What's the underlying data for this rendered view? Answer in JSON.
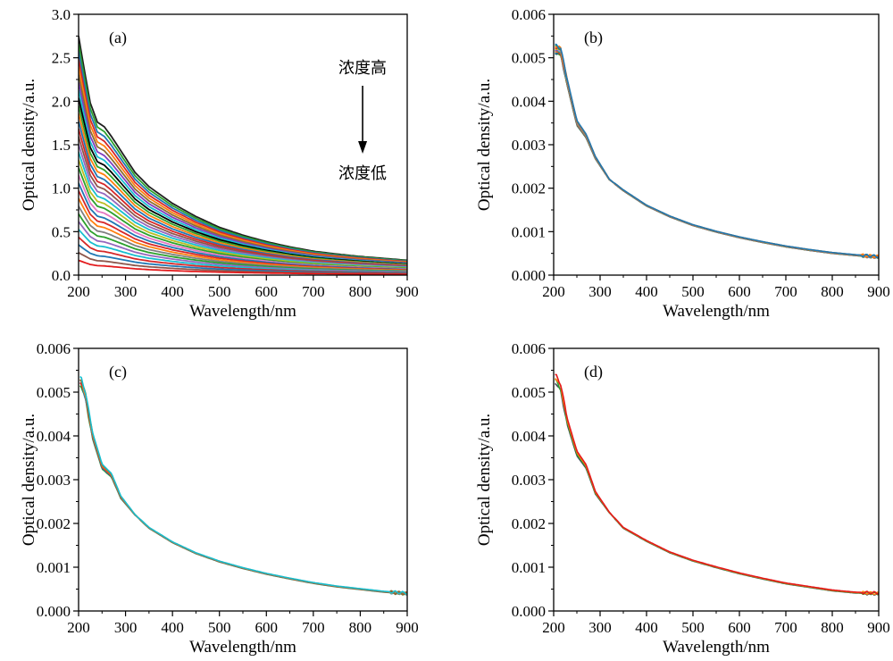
{
  "chart_data": [
    {
      "panel": "(a)",
      "type": "line",
      "xlabel": "Wavelength/nm",
      "ylabel": "Optical density/a.u.",
      "xlim": [
        200,
        900
      ],
      "ylim": [
        0,
        3.0
      ],
      "xticks": [
        "200",
        "300",
        "400",
        "500",
        "600",
        "700",
        "800",
        "900"
      ],
      "yticks": [
        "0.0",
        "0.5",
        "1.0",
        "1.5",
        "2.0",
        "2.5",
        "3.0"
      ],
      "annotations": {
        "top": "浓度高",
        "bottom": "浓度低",
        "arrow": "down"
      },
      "series_count": 30,
      "peak_at_200nm_range": [
        0.17,
        2.75
      ],
      "value_at_900nm_range": [
        0.03,
        0.22
      ],
      "colors": [
        "#1f1f1f",
        "#2ca02c",
        "#1f77b4",
        "#d62728",
        "#ff7f0e",
        "#8c6d31",
        "#7f3fbf",
        "#17becf",
        "#000000",
        "#2ca02c",
        "#ff7f0e",
        "#1f77b4",
        "#d62728",
        "#8c564b",
        "#9467bd",
        "#17becf",
        "#bcbd22",
        "#2ca02c",
        "#e377c2",
        "#1f77b4",
        "#d62728",
        "#ff7f0e",
        "#7f7f7f",
        "#2ca02c",
        "#9467bd",
        "#17becf",
        "#d62728",
        "#1f77b4",
        "#8c564b",
        "#e31a1c"
      ]
    },
    {
      "panel": "(b)",
      "type": "line",
      "xlabel": "Wavelength/nm",
      "ylabel": "Optical density/a.u.",
      "xlim": [
        200,
        900
      ],
      "ylim": [
        0,
        0.006
      ],
      "xticks": [
        "200",
        "300",
        "400",
        "500",
        "600",
        "700",
        "800",
        "900"
      ],
      "yticks": [
        "0.000",
        "0.001",
        "0.002",
        "0.003",
        "0.004",
        "0.005",
        "0.006"
      ],
      "profile": [
        [
          205,
          0.0052
        ],
        [
          215,
          0.00515
        ],
        [
          230,
          0.0044
        ],
        [
          250,
          0.0035
        ],
        [
          270,
          0.0032
        ],
        [
          290,
          0.0027
        ],
        [
          320,
          0.0022
        ],
        [
          350,
          0.00195
        ],
        [
          400,
          0.0016
        ],
        [
          450,
          0.00135
        ],
        [
          500,
          0.00115
        ],
        [
          550,
          0.001
        ],
        [
          600,
          0.00087
        ],
        [
          650,
          0.00076
        ],
        [
          700,
          0.00066
        ],
        [
          750,
          0.00058
        ],
        [
          800,
          0.00051
        ],
        [
          850,
          0.00046
        ],
        [
          900,
          0.00042
        ]
      ],
      "series_count": 14,
      "colors": [
        "#1f5e5e",
        "#2ca02c",
        "#1f77b4",
        "#d62728",
        "#ff7f0e",
        "#8c6d31",
        "#7f3fbf",
        "#17becf",
        "#bcbd22",
        "#e377c2",
        "#d62728",
        "#2ca02c",
        "#ff7f0e",
        "#1f77b4"
      ]
    },
    {
      "panel": "(c)",
      "type": "line",
      "xlabel": "Wavelength/nm",
      "ylabel": "Optical density/a.u.",
      "xlim": [
        200,
        900
      ],
      "ylim": [
        0,
        0.006
      ],
      "xticks": [
        "200",
        "300",
        "400",
        "500",
        "600",
        "700",
        "800",
        "900"
      ],
      "yticks": [
        "0.000",
        "0.001",
        "0.002",
        "0.003",
        "0.004",
        "0.005",
        "0.006"
      ],
      "profile": [
        [
          205,
          0.00525
        ],
        [
          215,
          0.0049
        ],
        [
          230,
          0.004
        ],
        [
          250,
          0.0033
        ],
        [
          270,
          0.0031
        ],
        [
          290,
          0.0026
        ],
        [
          320,
          0.0022
        ],
        [
          350,
          0.0019
        ],
        [
          400,
          0.00157
        ],
        [
          450,
          0.00132
        ],
        [
          500,
          0.00113
        ],
        [
          550,
          0.00098
        ],
        [
          600,
          0.00085
        ],
        [
          650,
          0.00074
        ],
        [
          700,
          0.00064
        ],
        [
          750,
          0.00056
        ],
        [
          800,
          0.0005
        ],
        [
          850,
          0.00044
        ],
        [
          900,
          0.0004
        ]
      ],
      "series_count": 6,
      "colors": [
        "#2ca02c",
        "#1f77b4",
        "#d62728",
        "#ff7f0e",
        "#8c6d31",
        "#17becf"
      ]
    },
    {
      "panel": "(d)",
      "type": "line",
      "xlabel": "Wavelength/nm",
      "ylabel": "Optical density/a.u.",
      "xlim": [
        200,
        900
      ],
      "ylim": [
        0,
        0.006
      ],
      "xticks": [
        "200",
        "300",
        "400",
        "500",
        "600",
        "700",
        "800",
        "900"
      ],
      "yticks": [
        "0.000",
        "0.001",
        "0.002",
        "0.003",
        "0.004",
        "0.005",
        "0.006"
      ],
      "profile": [
        [
          205,
          0.0053
        ],
        [
          215,
          0.0051
        ],
        [
          230,
          0.0043
        ],
        [
          250,
          0.0036
        ],
        [
          270,
          0.0033
        ],
        [
          290,
          0.0027
        ],
        [
          320,
          0.00225
        ],
        [
          350,
          0.0019
        ],
        [
          400,
          0.0016
        ],
        [
          450,
          0.00134
        ],
        [
          500,
          0.00115
        ],
        [
          550,
          0.001
        ],
        [
          600,
          0.00086
        ],
        [
          650,
          0.00074
        ],
        [
          700,
          0.00063
        ],
        [
          750,
          0.00055
        ],
        [
          800,
          0.00047
        ],
        [
          850,
          0.00042
        ],
        [
          900,
          0.0004
        ]
      ],
      "series_count": 4,
      "colors": [
        "#404a5a",
        "#2ca02c",
        "#ff7f0e",
        "#e31a1c"
      ]
    }
  ]
}
